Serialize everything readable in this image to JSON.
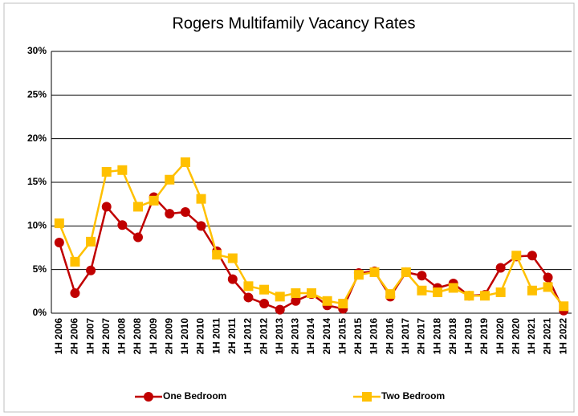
{
  "chart_data": {
    "type": "line",
    "title": "Rogers Multifamily Vacancy Rates",
    "categories": [
      "1H 2006",
      "2H 2006",
      "1H 2007",
      "2H 2007",
      "1H 2008",
      "2H 2008",
      "1H 2009",
      "2H 2009",
      "1H 2010",
      "2H 2010",
      "1H 2011",
      "2H 2011",
      "1H 2012",
      "2H 2012",
      "1H 2013",
      "2H 2013",
      "1H 2014",
      "2H 2014",
      "1H 2015",
      "2H 2015",
      "1H 2016",
      "2H 2016",
      "1H 2017",
      "2H 2017",
      "1H 2018",
      "2H 2018",
      "1H 2019",
      "2H 2019",
      "1H 2020",
      "2H 2020",
      "1H 2021",
      "2H 2021",
      "1H 2022"
    ],
    "series": [
      {
        "name": "One Bedroom",
        "color": "#c00000",
        "values": [
          8.1,
          2.3,
          4.9,
          12.2,
          10.1,
          8.7,
          13.3,
          11.4,
          11.6,
          10.0,
          7.1,
          3.9,
          1.8,
          1.1,
          0.4,
          1.4,
          2.2,
          0.9,
          0.5,
          4.6,
          4.8,
          1.9,
          4.7,
          4.3,
          2.9,
          3.4,
          2.0,
          2.1,
          5.2,
          6.5,
          6.6,
          4.1,
          0.3
        ]
      },
      {
        "name": "Two Bedroom",
        "color": "#ffc000",
        "values": [
          10.3,
          5.9,
          8.2,
          16.2,
          16.4,
          12.2,
          12.9,
          15.3,
          17.3,
          13.1,
          6.7,
          6.3,
          3.1,
          2.7,
          1.9,
          2.3,
          2.3,
          1.4,
          1.1,
          4.4,
          4.7,
          2.2,
          4.7,
          2.6,
          2.4,
          2.9,
          2.0,
          2.0,
          2.4,
          6.6,
          2.6,
          3.0,
          0.8
        ]
      }
    ],
    "ylim": [
      0,
      30
    ],
    "yticks": [
      {
        "value": 0,
        "label": "0%"
      },
      {
        "value": 5,
        "label": "5%"
      },
      {
        "value": 10,
        "label": "10%"
      },
      {
        "value": 15,
        "label": "15%"
      },
      {
        "value": 20,
        "label": "20%"
      },
      {
        "value": 25,
        "label": "25%"
      },
      {
        "value": 30,
        "label": "30%"
      }
    ],
    "grid": true,
    "legend": "bottom"
  }
}
